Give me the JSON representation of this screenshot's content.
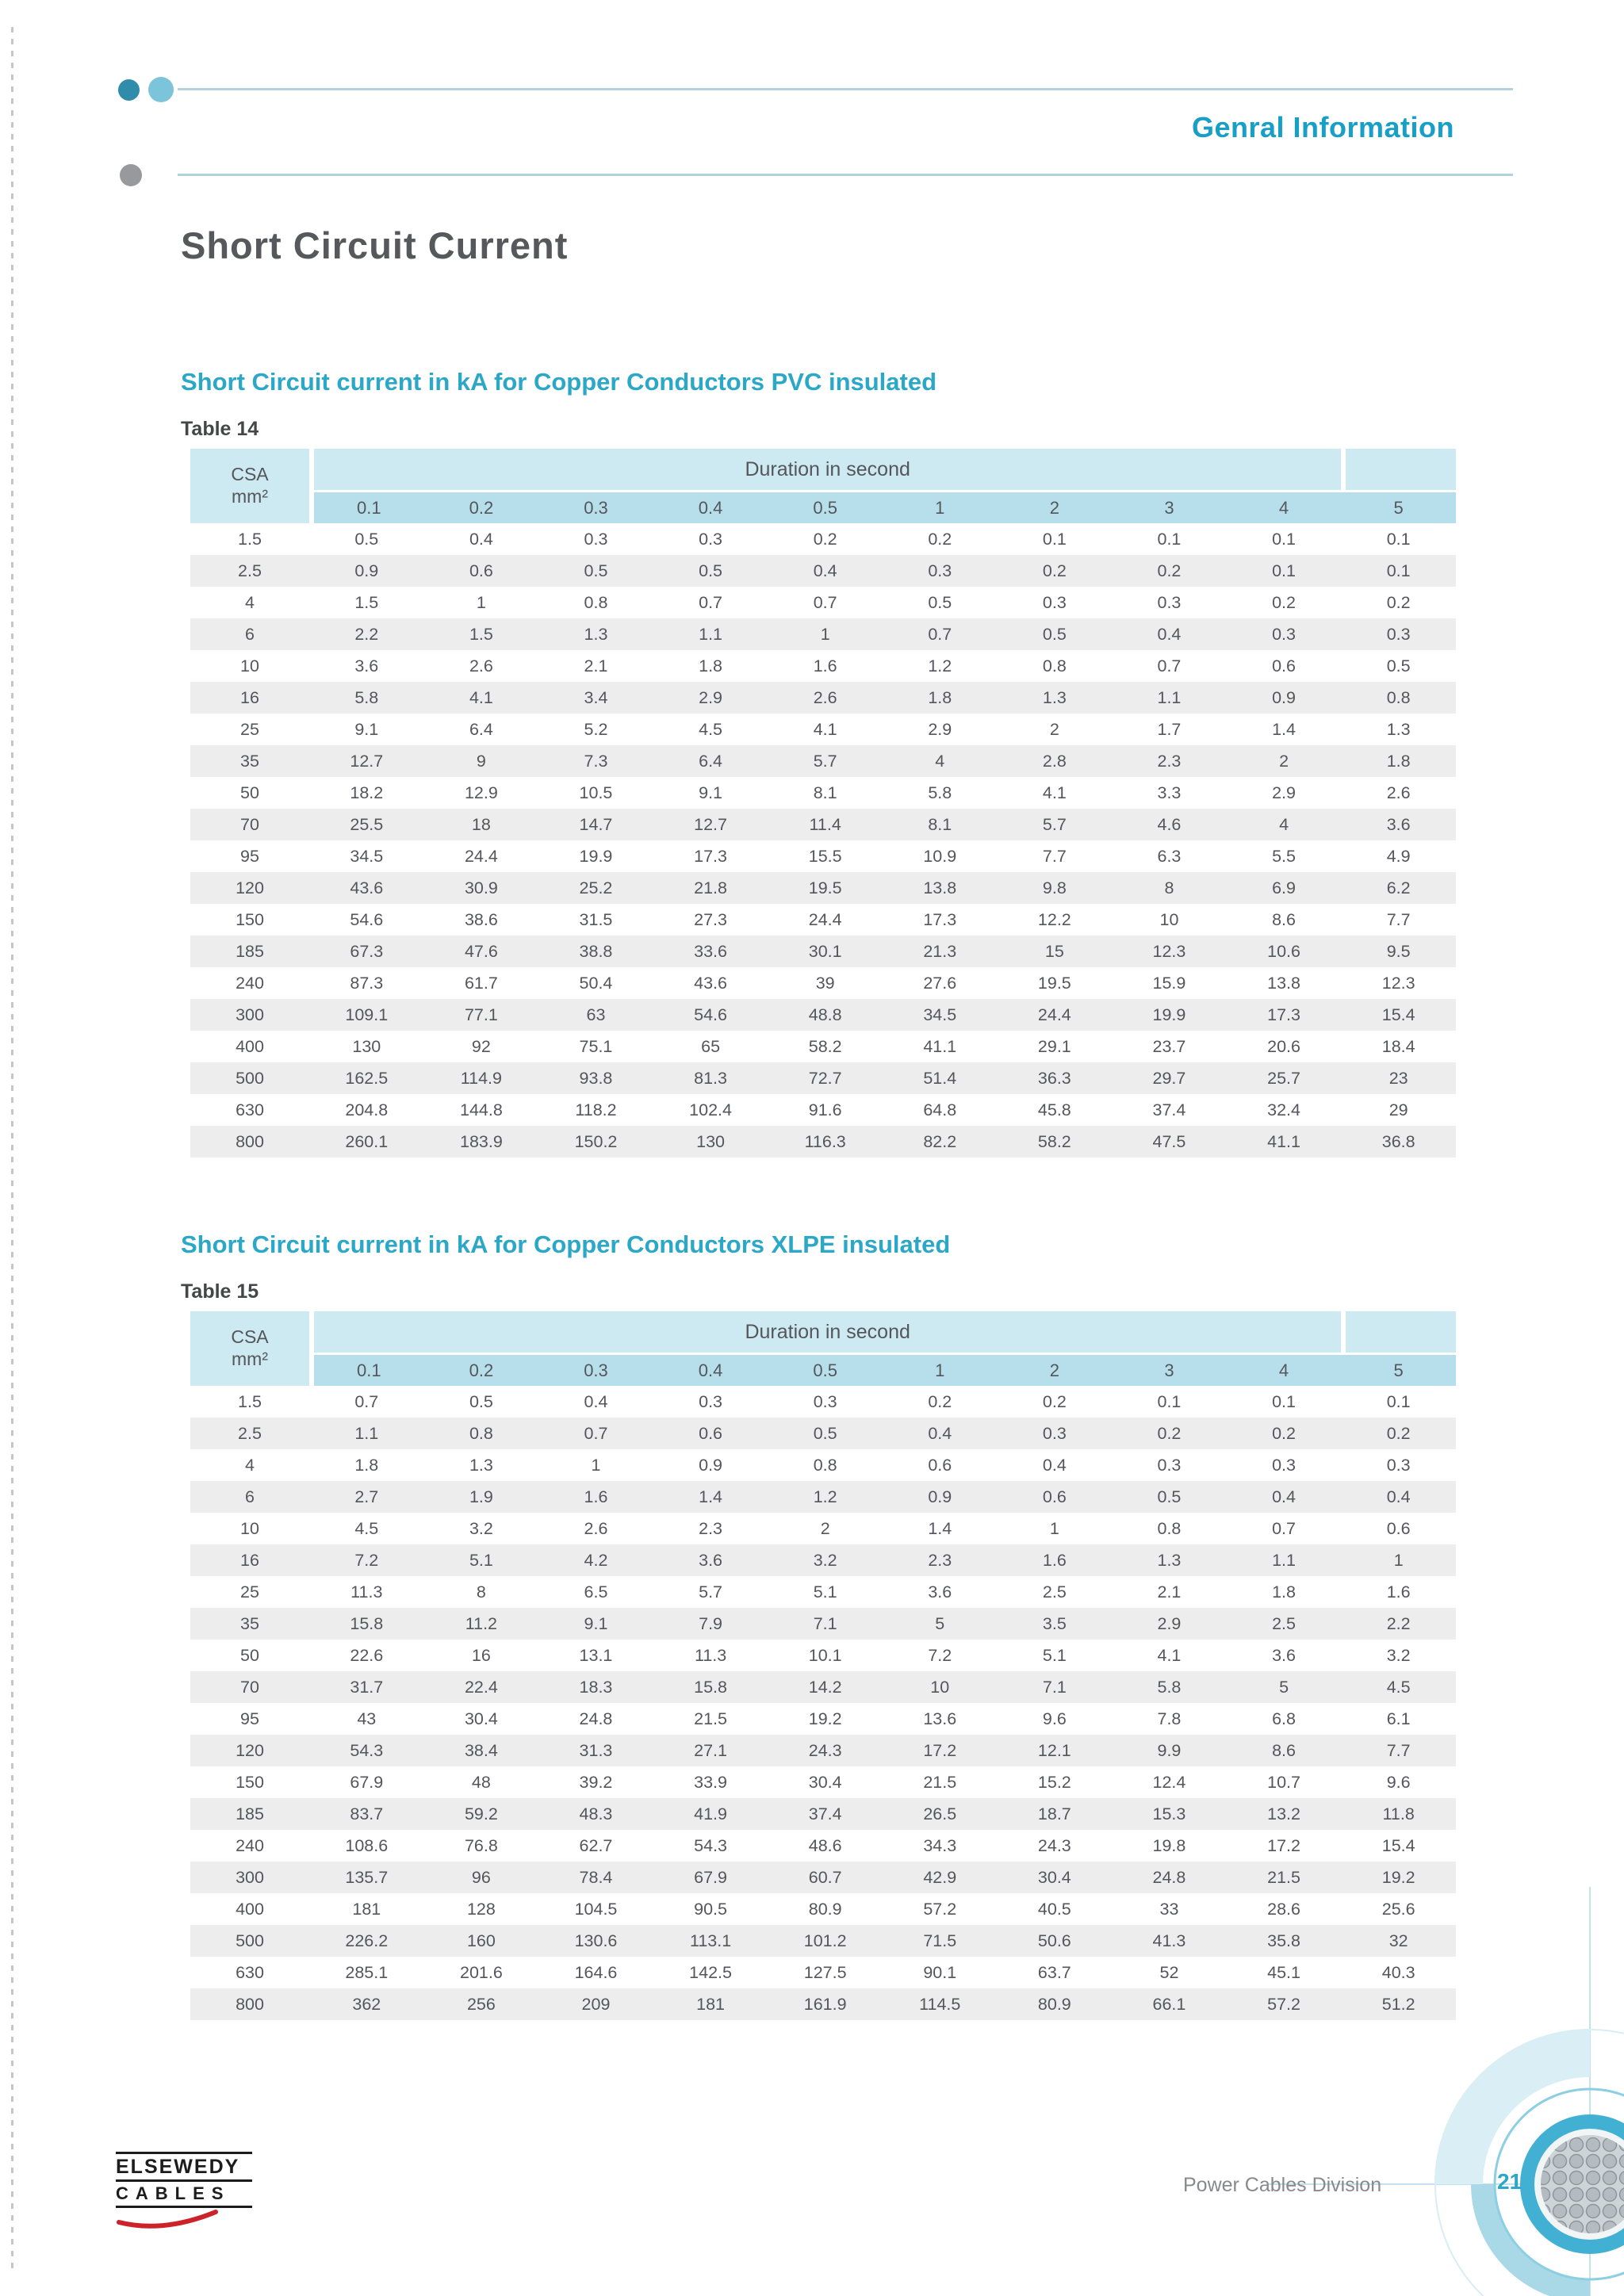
{
  "header": {
    "title": "Genral Information"
  },
  "page": {
    "title": "Short Circuit Current",
    "number": "21"
  },
  "footer": {
    "logo_line1": "ELSEWEDY",
    "logo_line2": "CABLES",
    "division": "Power Cables Division"
  },
  "colors": {
    "accent": "#2ba7c7",
    "band": "#cde9f2",
    "subheader": "#b6dfeb",
    "row_alt": "#ededee",
    "logo_red": "#cc2229"
  },
  "tables": [
    {
      "heading": "Short Circuit current in kA for Copper Conductors PVC insulated",
      "label": "Table 14",
      "corner": {
        "line1": "CSA",
        "line2": "mm²"
      },
      "band_header": "Duration in second",
      "columns": [
        "0.1",
        "0.2",
        "0.3",
        "0.4",
        "0.5",
        "1",
        "2",
        "3",
        "4",
        "5"
      ],
      "rows": [
        {
          "csa": "1.5",
          "values": [
            "0.5",
            "0.4",
            "0.3",
            "0.3",
            "0.2",
            "0.2",
            "0.1",
            "0.1",
            "0.1",
            "0.1"
          ]
        },
        {
          "csa": "2.5",
          "values": [
            "0.9",
            "0.6",
            "0.5",
            "0.5",
            "0.4",
            "0.3",
            "0.2",
            "0.2",
            "0.1",
            "0.1"
          ]
        },
        {
          "csa": "4",
          "values": [
            "1.5",
            "1",
            "0.8",
            "0.7",
            "0.7",
            "0.5",
            "0.3",
            "0.3",
            "0.2",
            "0.2"
          ]
        },
        {
          "csa": "6",
          "values": [
            "2.2",
            "1.5",
            "1.3",
            "1.1",
            "1",
            "0.7",
            "0.5",
            "0.4",
            "0.3",
            "0.3"
          ]
        },
        {
          "csa": "10",
          "values": [
            "3.6",
            "2.6",
            "2.1",
            "1.8",
            "1.6",
            "1.2",
            "0.8",
            "0.7",
            "0.6",
            "0.5"
          ]
        },
        {
          "csa": "16",
          "values": [
            "5.8",
            "4.1",
            "3.4",
            "2.9",
            "2.6",
            "1.8",
            "1.3",
            "1.1",
            "0.9",
            "0.8"
          ]
        },
        {
          "csa": "25",
          "values": [
            "9.1",
            "6.4",
            "5.2",
            "4.5",
            "4.1",
            "2.9",
            "2",
            "1.7",
            "1.4",
            "1.3"
          ]
        },
        {
          "csa": "35",
          "values": [
            "12.7",
            "9",
            "7.3",
            "6.4",
            "5.7",
            "4",
            "2.8",
            "2.3",
            "2",
            "1.8"
          ]
        },
        {
          "csa": "50",
          "values": [
            "18.2",
            "12.9",
            "10.5",
            "9.1",
            "8.1",
            "5.8",
            "4.1",
            "3.3",
            "2.9",
            "2.6"
          ]
        },
        {
          "csa": "70",
          "values": [
            "25.5",
            "18",
            "14.7",
            "12.7",
            "11.4",
            "8.1",
            "5.7",
            "4.6",
            "4",
            "3.6"
          ]
        },
        {
          "csa": "95",
          "values": [
            "34.5",
            "24.4",
            "19.9",
            "17.3",
            "15.5",
            "10.9",
            "7.7",
            "6.3",
            "5.5",
            "4.9"
          ]
        },
        {
          "csa": "120",
          "values": [
            "43.6",
            "30.9",
            "25.2",
            "21.8",
            "19.5",
            "13.8",
            "9.8",
            "8",
            "6.9",
            "6.2"
          ]
        },
        {
          "csa": "150",
          "values": [
            "54.6",
            "38.6",
            "31.5",
            "27.3",
            "24.4",
            "17.3",
            "12.2",
            "10",
            "8.6",
            "7.7"
          ]
        },
        {
          "csa": "185",
          "values": [
            "67.3",
            "47.6",
            "38.8",
            "33.6",
            "30.1",
            "21.3",
            "15",
            "12.3",
            "10.6",
            "9.5"
          ]
        },
        {
          "csa": "240",
          "values": [
            "87.3",
            "61.7",
            "50.4",
            "43.6",
            "39",
            "27.6",
            "19.5",
            "15.9",
            "13.8",
            "12.3"
          ]
        },
        {
          "csa": "300",
          "values": [
            "109.1",
            "77.1",
            "63",
            "54.6",
            "48.8",
            "34.5",
            "24.4",
            "19.9",
            "17.3",
            "15.4"
          ]
        },
        {
          "csa": "400",
          "values": [
            "130",
            "92",
            "75.1",
            "65",
            "58.2",
            "41.1",
            "29.1",
            "23.7",
            "20.6",
            "18.4"
          ]
        },
        {
          "csa": "500",
          "values": [
            "162.5",
            "114.9",
            "93.8",
            "81.3",
            "72.7",
            "51.4",
            "36.3",
            "29.7",
            "25.7",
            "23"
          ]
        },
        {
          "csa": "630",
          "values": [
            "204.8",
            "144.8",
            "118.2",
            "102.4",
            "91.6",
            "64.8",
            "45.8",
            "37.4",
            "32.4",
            "29"
          ]
        },
        {
          "csa": "800",
          "values": [
            "260.1",
            "183.9",
            "150.2",
            "130",
            "116.3",
            "82.2",
            "58.2",
            "47.5",
            "41.1",
            "36.8"
          ]
        }
      ]
    },
    {
      "heading": "Short Circuit current in kA for Copper Conductors XLPE insulated",
      "label": "Table 15",
      "corner": {
        "line1": "CSA",
        "line2": "mm²"
      },
      "band_header": "Duration in second",
      "columns": [
        "0.1",
        "0.2",
        "0.3",
        "0.4",
        "0.5",
        "1",
        "2",
        "3",
        "4",
        "5"
      ],
      "rows": [
        {
          "csa": "1.5",
          "values": [
            "0.7",
            "0.5",
            "0.4",
            "0.3",
            "0.3",
            "0.2",
            "0.2",
            "0.1",
            "0.1",
            "0.1"
          ]
        },
        {
          "csa": "2.5",
          "values": [
            "1.1",
            "0.8",
            "0.7",
            "0.6",
            "0.5",
            "0.4",
            "0.3",
            "0.2",
            "0.2",
            "0.2"
          ]
        },
        {
          "csa": "4",
          "values": [
            "1.8",
            "1.3",
            "1",
            "0.9",
            "0.8",
            "0.6",
            "0.4",
            "0.3",
            "0.3",
            "0.3"
          ]
        },
        {
          "csa": "6",
          "values": [
            "2.7",
            "1.9",
            "1.6",
            "1.4",
            "1.2",
            "0.9",
            "0.6",
            "0.5",
            "0.4",
            "0.4"
          ]
        },
        {
          "csa": "10",
          "values": [
            "4.5",
            "3.2",
            "2.6",
            "2.3",
            "2",
            "1.4",
            "1",
            "0.8",
            "0.7",
            "0.6"
          ]
        },
        {
          "csa": "16",
          "values": [
            "7.2",
            "5.1",
            "4.2",
            "3.6",
            "3.2",
            "2.3",
            "1.6",
            "1.3",
            "1.1",
            "1"
          ]
        },
        {
          "csa": "25",
          "values": [
            "11.3",
            "8",
            "6.5",
            "5.7",
            "5.1",
            "3.6",
            "2.5",
            "2.1",
            "1.8",
            "1.6"
          ]
        },
        {
          "csa": "35",
          "values": [
            "15.8",
            "11.2",
            "9.1",
            "7.9",
            "7.1",
            "5",
            "3.5",
            "2.9",
            "2.5",
            "2.2"
          ]
        },
        {
          "csa": "50",
          "values": [
            "22.6",
            "16",
            "13.1",
            "11.3",
            "10.1",
            "7.2",
            "5.1",
            "4.1",
            "3.6",
            "3.2"
          ]
        },
        {
          "csa": "70",
          "values": [
            "31.7",
            "22.4",
            "18.3",
            "15.8",
            "14.2",
            "10",
            "7.1",
            "5.8",
            "5",
            "4.5"
          ]
        },
        {
          "csa": "95",
          "values": [
            "43",
            "30.4",
            "24.8",
            "21.5",
            "19.2",
            "13.6",
            "9.6",
            "7.8",
            "6.8",
            "6.1"
          ]
        },
        {
          "csa": "120",
          "values": [
            "54.3",
            "38.4",
            "31.3",
            "27.1",
            "24.3",
            "17.2",
            "12.1",
            "9.9",
            "8.6",
            "7.7"
          ]
        },
        {
          "csa": "150",
          "values": [
            "67.9",
            "48",
            "39.2",
            "33.9",
            "30.4",
            "21.5",
            "15.2",
            "12.4",
            "10.7",
            "9.6"
          ]
        },
        {
          "csa": "185",
          "values": [
            "83.7",
            "59.2",
            "48.3",
            "41.9",
            "37.4",
            "26.5",
            "18.7",
            "15.3",
            "13.2",
            "11.8"
          ]
        },
        {
          "csa": "240",
          "values": [
            "108.6",
            "76.8",
            "62.7",
            "54.3",
            "48.6",
            "34.3",
            "24.3",
            "19.8",
            "17.2",
            "15.4"
          ]
        },
        {
          "csa": "300",
          "values": [
            "135.7",
            "96",
            "78.4",
            "67.9",
            "60.7",
            "42.9",
            "30.4",
            "24.8",
            "21.5",
            "19.2"
          ]
        },
        {
          "csa": "400",
          "values": [
            "181",
            "128",
            "104.5",
            "90.5",
            "80.9",
            "57.2",
            "40.5",
            "33",
            "28.6",
            "25.6"
          ]
        },
        {
          "csa": "500",
          "values": [
            "226.2",
            "160",
            "130.6",
            "113.1",
            "101.2",
            "71.5",
            "50.6",
            "41.3",
            "35.8",
            "32"
          ]
        },
        {
          "csa": "630",
          "values": [
            "285.1",
            "201.6",
            "164.6",
            "142.5",
            "127.5",
            "90.1",
            "63.7",
            "52",
            "45.1",
            "40.3"
          ]
        },
        {
          "csa": "800",
          "values": [
            "362",
            "256",
            "209",
            "181",
            "161.9",
            "114.5",
            "80.9",
            "66.1",
            "57.2",
            "51.2"
          ]
        }
      ]
    }
  ]
}
